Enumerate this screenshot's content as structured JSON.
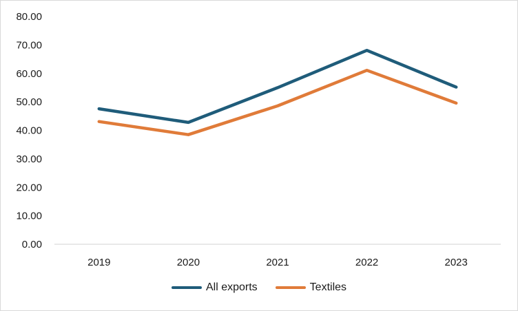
{
  "chart_data": {
    "type": "line",
    "categories": [
      "2019",
      "2020",
      "2021",
      "2022",
      "2023"
    ],
    "series": [
      {
        "name": "All exports",
        "color": "#1f5c7a",
        "values": [
          47.6,
          42.8,
          55.0,
          68.1,
          55.2
        ]
      },
      {
        "name": "Textiles",
        "color": "#e07b39",
        "values": [
          43.1,
          38.5,
          48.6,
          61.1,
          49.6
        ]
      }
    ],
    "yticks": [
      "0.00",
      "10.00",
      "20.00",
      "30.00",
      "40.00",
      "50.00",
      "60.00",
      "70.00",
      "80.00"
    ],
    "ylim": [
      0,
      80
    ],
    "grid": false,
    "legend_position": "bottom"
  }
}
